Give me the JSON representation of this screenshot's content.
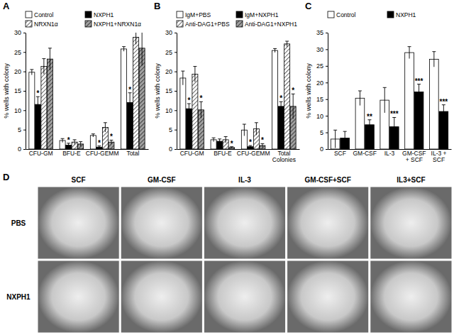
{
  "chart_data": [
    {
      "type": "bar",
      "title": "A",
      "y_label": "% wells with colony",
      "categories": [
        "CFU-GM",
        "BFU-E",
        "CFU-GEMM",
        "Total"
      ],
      "ylim": [
        0,
        30
      ],
      "yticks": [
        0,
        5,
        10,
        15,
        20,
        25,
        30
      ],
      "grid": false,
      "legend": "top",
      "series": [
        {
          "name": "Control",
          "color": "#ffffff",
          "values": [
            19.8,
            2.2,
            3.5,
            25.8
          ],
          "errors": [
            0.7,
            0.5,
            0.4,
            0.6
          ],
          "significance": [
            null,
            null,
            null,
            null
          ]
        },
        {
          "name": "NXPH1",
          "color": "#000000",
          "values": [
            11.5,
            1.0,
            0.5,
            12.0
          ],
          "errors": [
            2.0,
            0.5,
            0.3,
            2.5
          ],
          "significance": [
            "*",
            "*",
            "*",
            "*"
          ]
        },
        {
          "name": "NRXN1α",
          "color": "#ffffff",
          "values": [
            21.3,
            1.8,
            5.6,
            28.8
          ],
          "errors": [
            2.0,
            0.6,
            1.2,
            1.8
          ],
          "significance": [
            null,
            null,
            null,
            null
          ]
        },
        {
          "name": "NXPH1+NRXN1α",
          "color": "#a0a0a0",
          "values": [
            23.2,
            1.3,
            1.8,
            26.0
          ],
          "errors": [
            2.8,
            0.6,
            0.5,
            4.5
          ],
          "significance": [
            null,
            null,
            "*",
            null
          ]
        }
      ]
    },
    {
      "type": "bar",
      "title": "B",
      "y_label": "% wells with colony",
      "categories": [
        "CFU-GM",
        "BFU-E",
        "CFU-GEMM",
        "Total Colonies"
      ],
      "ylim": [
        0,
        30
      ],
      "yticks": [
        0,
        5,
        10,
        15,
        20,
        25,
        30
      ],
      "grid": false,
      "legend": "top",
      "series": [
        {
          "name": "IgM+PBS",
          "color": "#ffffff",
          "values": [
            18.3,
            2.4,
            4.9,
            25.4
          ],
          "errors": [
            1.8,
            0.5,
            1.5,
            0.5
          ],
          "significance": [
            null,
            null,
            null,
            null
          ]
        },
        {
          "name": "IgM+NXPH1",
          "color": "#000000",
          "values": [
            10.4,
            2.0,
            0.6,
            11.0
          ],
          "errors": [
            1.3,
            0.6,
            0.3,
            1.2
          ],
          "significance": [
            "*",
            null,
            "*",
            "*"
          ]
        },
        {
          "name": "Anti-DAG1+PBS",
          "color": "#ffffff",
          "values": [
            19.3,
            2.4,
            5.2,
            27.1
          ],
          "errors": [
            2.0,
            0.8,
            1.6,
            0.7
          ],
          "significance": [
            null,
            null,
            null,
            null
          ]
        },
        {
          "name": "Anti-DAG1+NXPH1",
          "color": "#a0a0a0",
          "values": [
            10.1,
            0.4,
            0.9,
            11.0
          ],
          "errors": [
            2.1,
            0.2,
            0.5,
            3.2
          ],
          "significance": [
            "*",
            "*",
            "*",
            "*"
          ]
        }
      ]
    },
    {
      "type": "bar",
      "title": "C",
      "y_label": "% wells with colony",
      "categories": [
        "SCF",
        "GM-CSF",
        "IL-3",
        "GM-CSF + SCF",
        "IL-3 + SCF"
      ],
      "ylim": [
        0,
        35
      ],
      "yticks": [
        0,
        5,
        10,
        15,
        20,
        25,
        30,
        35
      ],
      "grid": false,
      "legend": "top",
      "series": [
        {
          "name": "Control",
          "color": "#ffffff",
          "values": [
            3.0,
            15.3,
            14.7,
            29.0,
            27.0
          ],
          "errors": [
            2.7,
            2.2,
            3.8,
            1.8,
            2.3
          ],
          "significance": [
            null,
            null,
            null,
            null,
            null
          ]
        },
        {
          "name": "NXPH1",
          "color": "#000000",
          "values": [
            3.3,
            7.3,
            6.7,
            17.2,
            11.3
          ],
          "errors": [
            2.0,
            1.5,
            2.8,
            2.3,
            2.0
          ],
          "significance": [
            null,
            "**",
            "***",
            "***",
            "***"
          ]
        }
      ]
    }
  ],
  "image_grid": {
    "title": "D",
    "columns": [
      "SCF",
      "GM-CSF",
      "IL-3",
      "GM-CSF+SCF",
      "IL3+SCF"
    ],
    "rows": [
      "PBS",
      "NXPH1"
    ]
  }
}
